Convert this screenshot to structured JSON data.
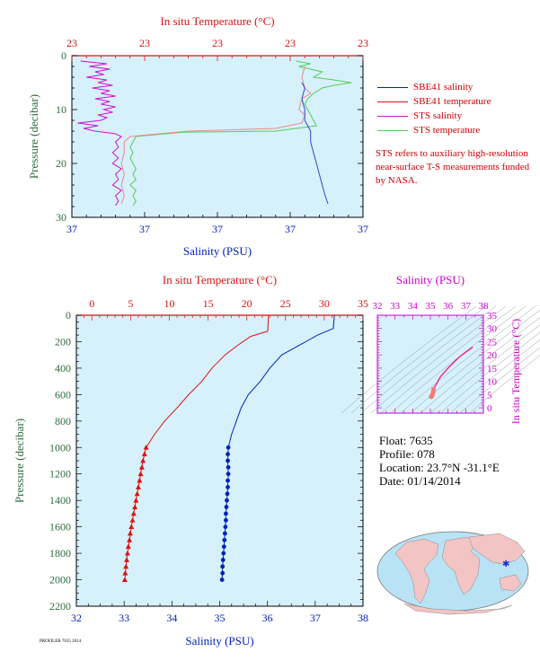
{
  "colors": {
    "panel": "#d6f1fb",
    "salinity": "#0022bb",
    "temperature": "#dd1111",
    "sts_salinity": "#d010d0",
    "sts_temperature": "#55cc55",
    "pressure_axis": "#2e6b3a",
    "ts_axis": "#cc00cc",
    "info_text": "#000000"
  },
  "legend": {
    "items": [
      {
        "label": "SBE41 salinity",
        "color": "#0022bb"
      },
      {
        "label": "SBE41 temperature",
        "color": "#dd1111"
      },
      {
        "label": "STS salinity",
        "color": "#d010d0"
      },
      {
        "label": "STS temperature",
        "color": "#55cc55"
      }
    ],
    "note": "STS refers to auxiliary high-resolution near-surface T-S measurements funded by NASA."
  },
  "float_info": {
    "float": "Float: 7635",
    "profile": "Profile: 078",
    "location": "Location: 23.7°N -31.1°E",
    "date": "Date: 01/14/2014"
  },
  "footer": "PROFILER 7635 2014",
  "chart_data": [
    {
      "id": "near-surface",
      "type": "line",
      "top_xlabel": "In situ Temperature (°C)",
      "top_ticks": [
        "23",
        "23",
        "23",
        "23",
        "23"
      ],
      "xlabel": "Salinity (PSU)",
      "bottom_ticks": [
        "37",
        "37",
        "37",
        "37",
        "37"
      ],
      "ylabel": "Pressure (decibar)",
      "yticks": [
        0,
        10,
        20,
        30
      ],
      "ylim": [
        0,
        30
      ],
      "xlim_fraction": [
        0,
        1
      ],
      "series": [
        {
          "name": "STS salinity",
          "color": "#d010d0",
          "points": [
            [
              0.03,
              1
            ],
            [
              0.12,
              1.5
            ],
            [
              0.06,
              2
            ],
            [
              0.13,
              2.5
            ],
            [
              0.08,
              3
            ],
            [
              0.11,
              3.5
            ],
            [
              0.05,
              4
            ],
            [
              0.12,
              4.5
            ],
            [
              0.09,
              5
            ],
            [
              0.14,
              5.5
            ],
            [
              0.07,
              6
            ],
            [
              0.13,
              6.5
            ],
            [
              0.1,
              7
            ],
            [
              0.15,
              7.5
            ],
            [
              0.08,
              8
            ],
            [
              0.13,
              8.5
            ],
            [
              0.1,
              9
            ],
            [
              0.15,
              9.5
            ],
            [
              0.11,
              10
            ],
            [
              0.14,
              10.5
            ],
            [
              0.09,
              11
            ],
            [
              0.12,
              11.5
            ],
            [
              0.1,
              12
            ],
            [
              0.02,
              12.5
            ],
            [
              0.09,
              13
            ],
            [
              0.04,
              13.5
            ],
            [
              0.08,
              14
            ],
            [
              0.15,
              14.5
            ],
            [
              0.17,
              15
            ],
            [
              0.15,
              16
            ],
            [
              0.16,
              17
            ],
            [
              0.14,
              18
            ],
            [
              0.16,
              19
            ],
            [
              0.14,
              20
            ],
            [
              0.17,
              21
            ],
            [
              0.15,
              22
            ],
            [
              0.16,
              23
            ],
            [
              0.14,
              24
            ],
            [
              0.17,
              25
            ],
            [
              0.15,
              26
            ],
            [
              0.16,
              27
            ],
            [
              0.15,
              27.8
            ]
          ]
        },
        {
          "name": "STS temperature",
          "color": "#55cc55",
          "points": [
            [
              0.77,
              1
            ],
            [
              0.82,
              1.5
            ],
            [
              0.78,
              2
            ],
            [
              0.86,
              3
            ],
            [
              0.83,
              4
            ],
            [
              0.9,
              4.5
            ],
            [
              0.96,
              5
            ],
            [
              0.9,
              5.5
            ],
            [
              0.86,
              6
            ],
            [
              0.83,
              7
            ],
            [
              0.81,
              8
            ],
            [
              0.8,
              9
            ],
            [
              0.81,
              10
            ],
            [
              0.82,
              11
            ],
            [
              0.83,
              12
            ],
            [
              0.84,
              13
            ],
            [
              0.7,
              14
            ],
            [
              0.38,
              14.2
            ],
            [
              0.22,
              15
            ],
            [
              0.21,
              16
            ],
            [
              0.2,
              17
            ],
            [
              0.21,
              18
            ],
            [
              0.2,
              19
            ],
            [
              0.21,
              20
            ],
            [
              0.22,
              21
            ],
            [
              0.21,
              22
            ],
            [
              0.22,
              23
            ],
            [
              0.2,
              24
            ],
            [
              0.22,
              25
            ],
            [
              0.21,
              26
            ],
            [
              0.22,
              27
            ],
            [
              0.21,
              27.8
            ]
          ]
        },
        {
          "name": "SBE41 temperature",
          "color": "#ee8888",
          "points": [
            [
              0.8,
              2
            ],
            [
              0.79,
              4
            ],
            [
              0.8,
              6
            ],
            [
              0.82,
              7
            ],
            [
              0.79,
              8
            ],
            [
              0.78,
              10
            ],
            [
              0.8,
              11
            ],
            [
              0.79,
              12.5
            ],
            [
              0.7,
              13.5
            ],
            [
              0.4,
              14
            ],
            [
              0.2,
              15
            ],
            [
              0.18,
              16
            ],
            [
              0.18,
              18
            ],
            [
              0.17,
              20
            ],
            [
              0.18,
              22
            ],
            [
              0.17,
              24
            ],
            [
              0.18,
              26
            ],
            [
              0.17,
              27.5
            ]
          ]
        },
        {
          "name": "SBE41 salinity",
          "color": "#3344cc",
          "points": [
            [
              0.79,
              5
            ],
            [
              0.8,
              6
            ],
            [
              0.79,
              8
            ],
            [
              0.8,
              10
            ],
            [
              0.8,
              12
            ],
            [
              0.81,
              13
            ],
            [
              0.82,
              14
            ],
            [
              0.82,
              16
            ],
            [
              0.83,
              18
            ],
            [
              0.84,
              20
            ],
            [
              0.85,
              22
            ],
            [
              0.86,
              24
            ],
            [
              0.87,
              26
            ],
            [
              0.88,
              27.5
            ]
          ]
        }
      ]
    },
    {
      "id": "full-profile",
      "type": "line",
      "top_xlabel": "In situ Temperature (°C)",
      "top_ticks": [
        0,
        5,
        10,
        15,
        20,
        25,
        30,
        35
      ],
      "top_xlim": [
        -2,
        35
      ],
      "xlabel": "Salinity (PSU)",
      "xticks": [
        32,
        33,
        34,
        35,
        36,
        37,
        38
      ],
      "xlim": [
        32,
        38
      ],
      "ylabel": "Pressure (decibar)",
      "yticks": [
        0,
        200,
        400,
        600,
        800,
        1000,
        1200,
        1400,
        1600,
        1800,
        2000,
        2200
      ],
      "ylim": [
        0,
        2200
      ],
      "series": [
        {
          "name": "Salinity",
          "axis": "bottom",
          "color": "#0022bb",
          "points": [
            [
              37.4,
              0
            ],
            [
              37.38,
              100
            ],
            [
              37.05,
              150
            ],
            [
              36.8,
              200
            ],
            [
              36.55,
              250
            ],
            [
              36.3,
              300
            ],
            [
              36.05,
              400
            ],
            [
              35.85,
              500
            ],
            [
              35.6,
              600
            ],
            [
              35.45,
              700
            ],
            [
              35.35,
              800
            ],
            [
              35.25,
              900
            ],
            [
              35.18,
              1000
            ],
            [
              35.17,
              1100
            ],
            [
              35.18,
              1200
            ],
            [
              35.17,
              1300
            ],
            [
              35.15,
              1400
            ],
            [
              35.13,
              1500
            ],
            [
              35.12,
              1600
            ],
            [
              35.1,
              1700
            ],
            [
              35.08,
              1800
            ],
            [
              35.06,
              1900
            ],
            [
              35.05,
              2000
            ]
          ]
        },
        {
          "name": "Temperature",
          "axis": "top",
          "color": "#dd1111",
          "points": [
            [
              22.8,
              0
            ],
            [
              22.7,
              120
            ],
            [
              20.5,
              160
            ],
            [
              19,
              220
            ],
            [
              17.2,
              300
            ],
            [
              15.5,
              400
            ],
            [
              14.2,
              500
            ],
            [
              12.5,
              600
            ],
            [
              11,
              700
            ],
            [
              9.4,
              800
            ],
            [
              8.1,
              900
            ],
            [
              7.0,
              1000
            ],
            [
              6.6,
              1100
            ],
            [
              6.3,
              1200
            ],
            [
              6.0,
              1300
            ],
            [
              5.7,
              1400
            ],
            [
              5.4,
              1500
            ],
            [
              5.1,
              1600
            ],
            [
              4.85,
              1700
            ],
            [
              4.6,
              1800
            ],
            [
              4.4,
              1900
            ],
            [
              4.25,
              2000
            ]
          ]
        }
      ],
      "markers": {
        "salinity": [
          [
            35.18,
            1000
          ],
          [
            35.17,
            1050
          ],
          [
            35.17,
            1100
          ],
          [
            35.18,
            1150
          ],
          [
            35.18,
            1200
          ],
          [
            35.17,
            1250
          ],
          [
            35.17,
            1300
          ],
          [
            35.16,
            1350
          ],
          [
            35.15,
            1400
          ],
          [
            35.14,
            1450
          ],
          [
            35.13,
            1500
          ],
          [
            35.13,
            1550
          ],
          [
            35.12,
            1600
          ],
          [
            35.11,
            1650
          ],
          [
            35.1,
            1700
          ],
          [
            35.09,
            1750
          ],
          [
            35.08,
            1800
          ],
          [
            35.07,
            1850
          ],
          [
            35.06,
            1900
          ],
          [
            35.06,
            1950
          ],
          [
            35.05,
            2000
          ]
        ],
        "temperature": [
          [
            7.0,
            1000
          ],
          [
            6.8,
            1050
          ],
          [
            6.6,
            1100
          ],
          [
            6.45,
            1150
          ],
          [
            6.3,
            1200
          ],
          [
            6.15,
            1250
          ],
          [
            6.0,
            1300
          ],
          [
            5.85,
            1350
          ],
          [
            5.7,
            1400
          ],
          [
            5.55,
            1450
          ],
          [
            5.4,
            1500
          ],
          [
            5.25,
            1550
          ],
          [
            5.1,
            1600
          ],
          [
            4.95,
            1650
          ],
          [
            4.85,
            1700
          ],
          [
            4.7,
            1750
          ],
          [
            4.6,
            1800
          ],
          [
            4.5,
            1850
          ],
          [
            4.4,
            1900
          ],
          [
            4.3,
            1950
          ],
          [
            4.25,
            2000
          ]
        ]
      }
    },
    {
      "id": "ts-diagram",
      "type": "scatter",
      "top_xlabel": "Salinity (PSU)",
      "xticks": [
        32,
        33,
        34,
        35,
        36,
        37,
        38
      ],
      "xlim": [
        32,
        38
      ],
      "ylabel": "In situ Temperature (°C)",
      "yticks": [
        0,
        5,
        10,
        15,
        20,
        25,
        30,
        35
      ],
      "ylim": [
        -2,
        35
      ],
      "series": [
        {
          "name": "T-S",
          "color": "#ee2299",
          "points": [
            [
              37.4,
              23
            ],
            [
              37.0,
              21
            ],
            [
              36.6,
              19
            ],
            [
              36.3,
              17
            ],
            [
              36.0,
              15
            ],
            [
              35.8,
              13.5
            ],
            [
              35.6,
              12
            ],
            [
              35.45,
              10.5
            ],
            [
              35.35,
              9
            ],
            [
              35.25,
              8
            ],
            [
              35.18,
              7
            ],
            [
              35.16,
              6
            ],
            [
              35.12,
              5
            ],
            [
              35.08,
              4.5
            ],
            [
              35.05,
              4.2
            ]
          ]
        }
      ]
    }
  ]
}
